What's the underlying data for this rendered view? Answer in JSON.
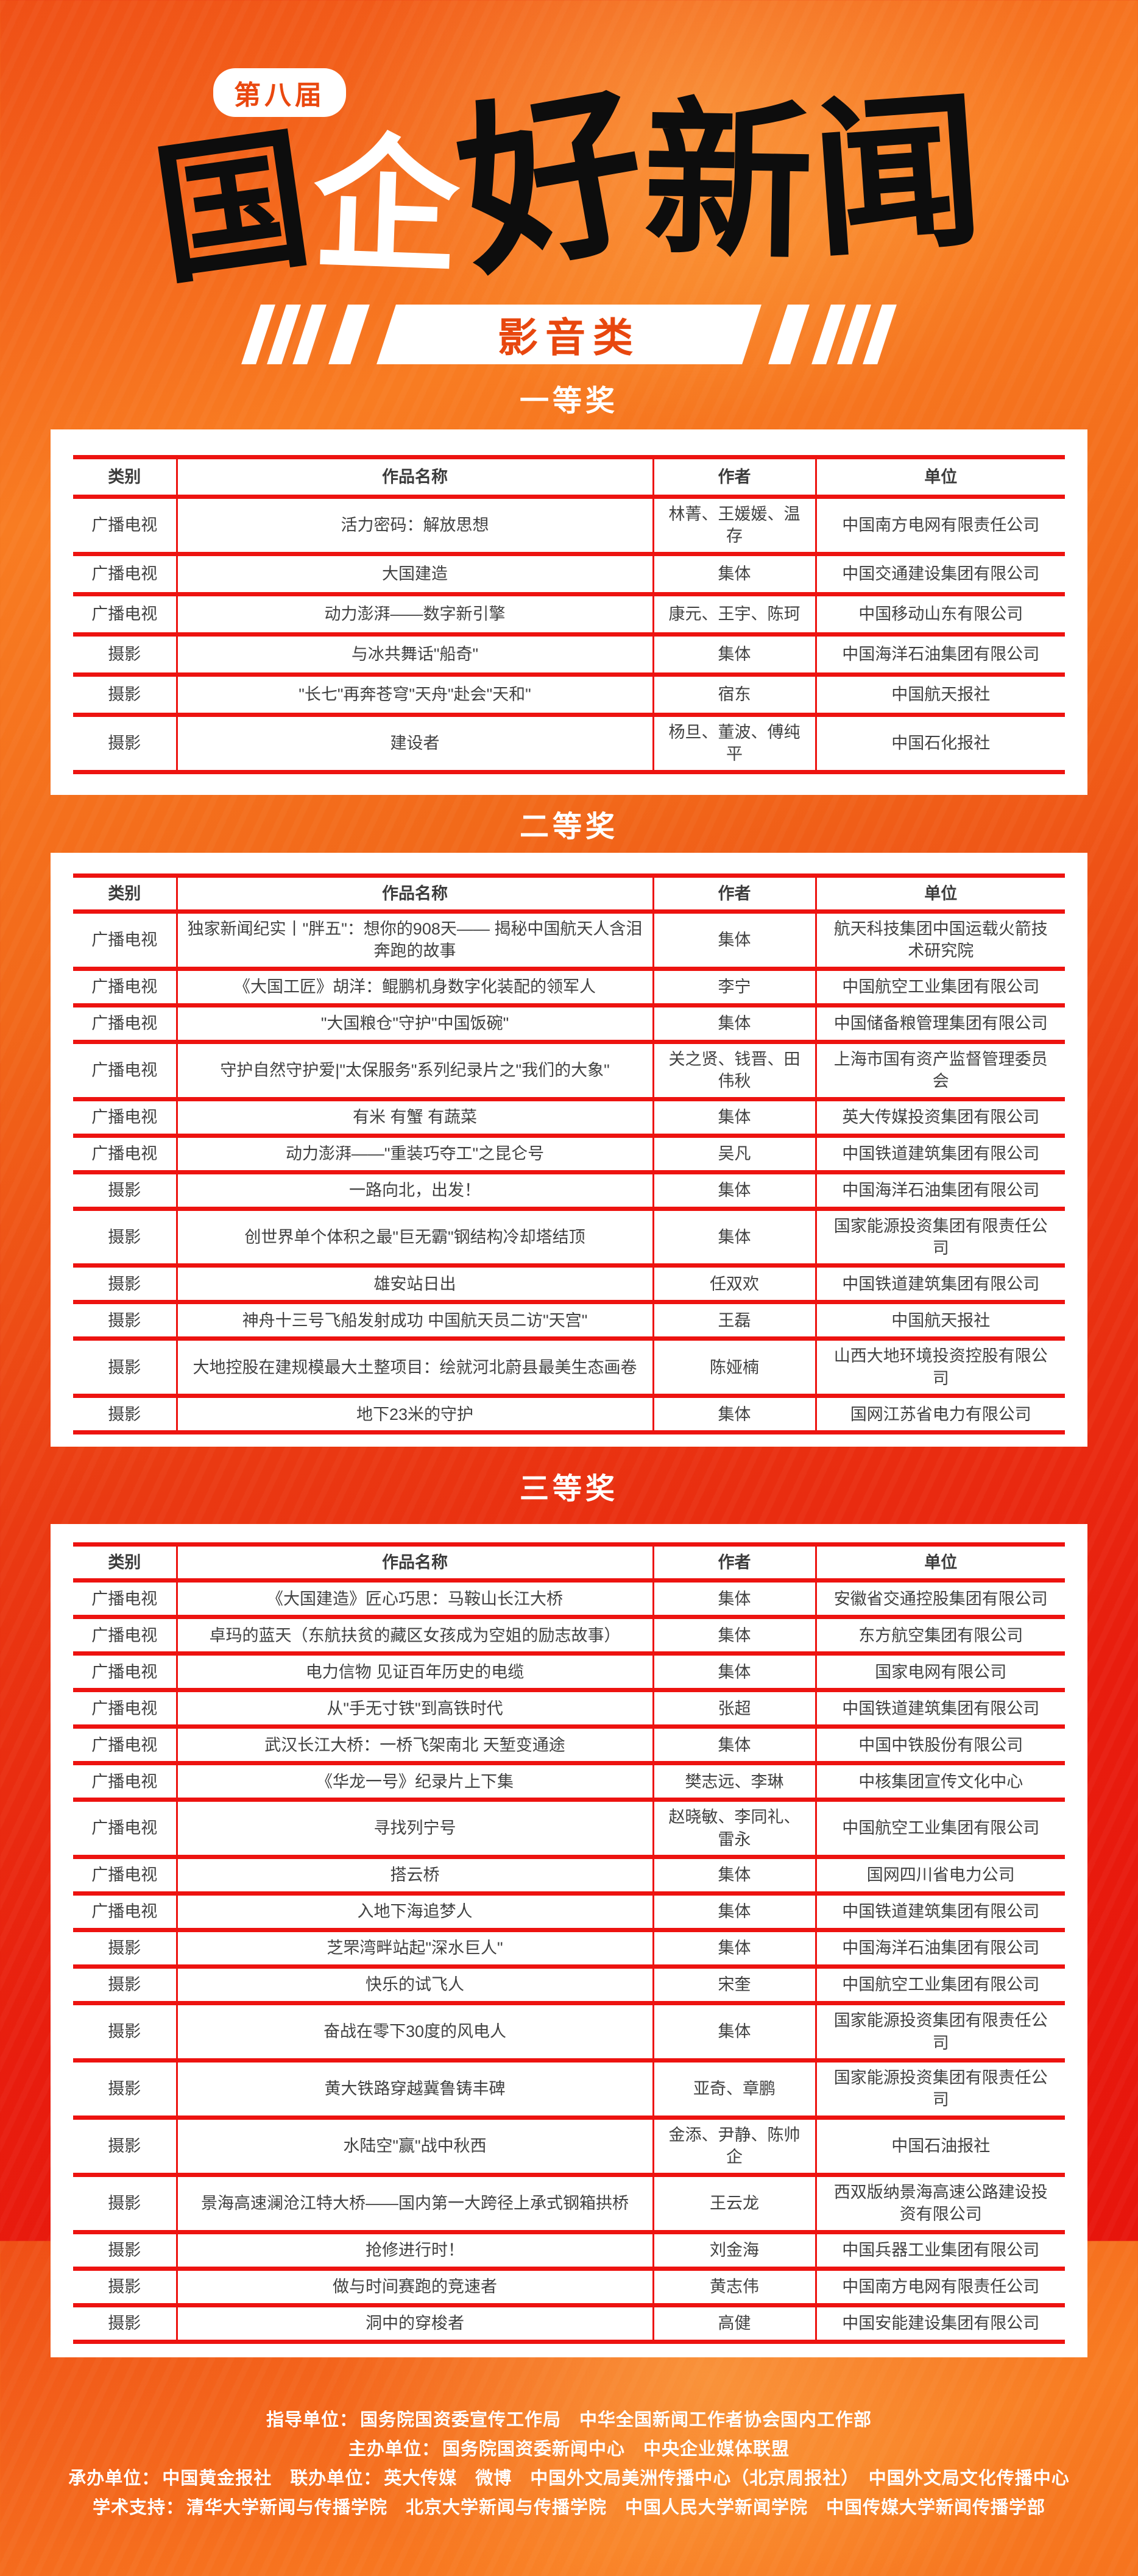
{
  "header": {
    "badge": "第八届",
    "title_chars": [
      "国",
      "企",
      "好",
      "新",
      "闻"
    ],
    "title_full": "国企好新闻",
    "category_banner": "影音类"
  },
  "colors": {
    "table_border_red": "#ed1310",
    "banner_text_red": "#e8470f",
    "background_orange": "#f87c22",
    "background_red": "#e7150c",
    "table_text": "#414141"
  },
  "sections": [
    {
      "title": "一等奖",
      "headers": [
        "类别",
        "作品名称",
        "作者",
        "单位"
      ],
      "rows": [
        [
          "广播电视",
          "活力密码：解放思想",
          "林菁、王媛媛、温存",
          "中国南方电网有限责任公司"
        ],
        [
          "广播电视",
          "大国建造",
          "集体",
          "中国交通建设集团有限公司"
        ],
        [
          "广播电视",
          "动力澎湃——数字新引擎",
          "康元、王宇、陈珂",
          "中国移动山东有限公司"
        ],
        [
          "摄影",
          "与冰共舞话\"船奇\"",
          "集体",
          "中国海洋石油集团有限公司"
        ],
        [
          "摄影",
          "\"长七\"再奔苍穹\"天舟\"赴会\"天和\"",
          "宿东",
          "中国航天报社"
        ],
        [
          "摄影",
          "建设者",
          "杨旦、董波、傅纯平",
          "中国石化报社"
        ]
      ]
    },
    {
      "title": "二等奖",
      "headers": [
        "类别",
        "作品名称",
        "作者",
        "单位"
      ],
      "rows": [
        [
          "广播电视",
          "独家新闻纪实丨\"胖五\"：想你的908天—— 揭秘中国航天人含泪奔跑的故事",
          "集体",
          "航天科技集团中国运载火箭技术研究院"
        ],
        [
          "广播电视",
          "《大国工匠》胡洋：鲲鹏机身数字化装配的领军人",
          "李宁",
          "中国航空工业集团有限公司"
        ],
        [
          "广播电视",
          "\"大国粮仓\"守护\"中国饭碗\"",
          "集体",
          "中国储备粮管理集团有限公司"
        ],
        [
          "广播电视",
          "守护自然守护爱|\"太保服务\"系列纪录片之\"我们的大象\"",
          "关之贤、钱晋、田伟秋",
          "上海市国有资产监督管理委员会"
        ],
        [
          "广播电视",
          "有米 有蟹 有蔬菜",
          "集体",
          "英大传媒投资集团有限公司"
        ],
        [
          "广播电视",
          "动力澎湃——\"重装巧夺工\"之昆仑号",
          "吴凡",
          "中国铁道建筑集团有限公司"
        ],
        [
          "摄影",
          "一路向北，出发！",
          "集体",
          "中国海洋石油集团有限公司"
        ],
        [
          "摄影",
          "创世界单个体积之最\"巨无霸\"钢结构冷却塔结顶",
          "集体",
          "国家能源投资集团有限责任公司"
        ],
        [
          "摄影",
          "雄安站日出",
          "任双欢",
          "中国铁道建筑集团有限公司"
        ],
        [
          "摄影",
          "神舟十三号飞船发射成功 中国航天员二访\"天宫\"",
          "王磊",
          "中国航天报社"
        ],
        [
          "摄影",
          "大地控股在建规模最大土整项目：绘就河北蔚县最美生态画卷",
          "陈娅楠",
          "山西大地环境投资控股有限公司"
        ],
        [
          "摄影",
          "地下23米的守护",
          "集体",
          "国网江苏省电力有限公司"
        ]
      ]
    },
    {
      "title": "三等奖",
      "headers": [
        "类别",
        "作品名称",
        "作者",
        "单位"
      ],
      "rows": [
        [
          "广播电视",
          "《大国建造》匠心巧思：马鞍山长江大桥",
          "集体",
          "安徽省交通控股集团有限公司"
        ],
        [
          "广播电视",
          "卓玛的蓝天（东航扶贫的藏区女孩成为空姐的励志故事）",
          "集体",
          "东方航空集团有限公司"
        ],
        [
          "广播电视",
          "电力信物 见证百年历史的电缆",
          "集体",
          "国家电网有限公司"
        ],
        [
          "广播电视",
          "从\"手无寸铁\"到高铁时代",
          "张超",
          "中国铁道建筑集团有限公司"
        ],
        [
          "广播电视",
          "武汉长江大桥：一桥飞架南北 天堑变通途",
          "集体",
          "中国中铁股份有限公司"
        ],
        [
          "广播电视",
          "《华龙一号》纪录片上下集",
          "樊志远、李琳",
          "中核集团宣传文化中心"
        ],
        [
          "广播电视",
          "寻找列宁号",
          "赵晓敏、李同礼、雷永",
          "中国航空工业集团有限公司"
        ],
        [
          "广播电视",
          "搭云桥",
          "集体",
          "国网四川省电力公司"
        ],
        [
          "广播电视",
          "入地下海追梦人",
          "集体",
          "中国铁道建筑集团有限公司"
        ],
        [
          "摄影",
          "芝罘湾畔站起\"深水巨人\"",
          "集体",
          "中国海洋石油集团有限公司"
        ],
        [
          "摄影",
          "快乐的试飞人",
          "宋奎",
          "中国航空工业集团有限公司"
        ],
        [
          "摄影",
          "奋战在零下30度的风电人",
          "集体",
          "国家能源投资集团有限责任公司"
        ],
        [
          "摄影",
          "黄大铁路穿越冀鲁铸丰碑",
          "亚奇、章鹏",
          "国家能源投资集团有限责任公司"
        ],
        [
          "摄影",
          "水陆空\"赢\"战中秋西",
          "金添、尹静、陈帅企",
          "中国石油报社"
        ],
        [
          "摄影",
          "景海高速澜沧江特大桥——国内第一大跨径上承式钢箱拱桥",
          "王云龙",
          "西双版纳景海高速公路建设投资有限公司"
        ],
        [
          "摄影",
          "抢修进行时！",
          "刘金海",
          "中国兵器工业集团有限公司"
        ],
        [
          "摄影",
          "做与时间赛跑的竞速者",
          "黄志伟",
          "中国南方电网有限责任公司"
        ],
        [
          "摄影",
          "洞中的穿梭者",
          "高健",
          "中国安能建设集团有限公司"
        ]
      ]
    }
  ],
  "footer": {
    "lines": [
      {
        "segments": [
          {
            "label": "指导单位：",
            "text": "国务院国资委宣传工作局　中华全国新闻工作者协会国内工作部"
          }
        ]
      },
      {
        "segments": [
          {
            "label": "主办单位：",
            "text": "国务院国资委新闻中心　中央企业媒体联盟"
          }
        ]
      },
      {
        "segments": [
          {
            "label": "承办单位：",
            "text": "中国黄金报社"
          },
          {
            "label": "联办单位：",
            "text": "英大传媒　微博　中国外文局美洲传播中心（北京周报社）　中国外文局文化传播中心"
          }
        ]
      },
      {
        "segments": [
          {
            "label": "学术支持：",
            "text": "清华大学新闻与传播学院　北京大学新闻与传播学院　中国人民大学新闻学院　中国传媒大学新闻传播学部"
          }
        ]
      }
    ]
  }
}
